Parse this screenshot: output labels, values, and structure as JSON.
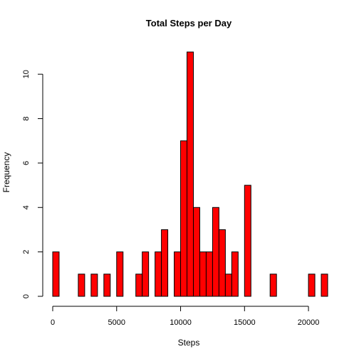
{
  "chart_data": {
    "type": "bar",
    "title": "Total Steps per Day",
    "xlabel": "Steps",
    "ylabel": "Frequency",
    "bar_color": "#ff0000",
    "bin_width": 500,
    "bins": [
      {
        "x0": 0,
        "x1": 500,
        "count": 2
      },
      {
        "x0": 2000,
        "x1": 2500,
        "count": 1
      },
      {
        "x0": 3000,
        "x1": 3500,
        "count": 1
      },
      {
        "x0": 4000,
        "x1": 4500,
        "count": 1
      },
      {
        "x0": 5000,
        "x1": 5500,
        "count": 2
      },
      {
        "x0": 6500,
        "x1": 7000,
        "count": 1
      },
      {
        "x0": 7000,
        "x1": 7500,
        "count": 2
      },
      {
        "x0": 8000,
        "x1": 8500,
        "count": 2
      },
      {
        "x0": 8500,
        "x1": 9000,
        "count": 3
      },
      {
        "x0": 9500,
        "x1": 10000,
        "count": 2
      },
      {
        "x0": 10000,
        "x1": 10500,
        "count": 7
      },
      {
        "x0": 10500,
        "x1": 11000,
        "count": 11
      },
      {
        "x0": 11000,
        "x1": 11500,
        "count": 4
      },
      {
        "x0": 11500,
        "x1": 12000,
        "count": 2
      },
      {
        "x0": 12000,
        "x1": 12500,
        "count": 2
      },
      {
        "x0": 12500,
        "x1": 13000,
        "count": 4
      },
      {
        "x0": 13000,
        "x1": 13500,
        "count": 3
      },
      {
        "x0": 13500,
        "x1": 14000,
        "count": 1
      },
      {
        "x0": 14000,
        "x1": 14500,
        "count": 2
      },
      {
        "x0": 15000,
        "x1": 15500,
        "count": 5
      },
      {
        "x0": 17000,
        "x1": 17500,
        "count": 1
      },
      {
        "x0": 20000,
        "x1": 20500,
        "count": 1
      },
      {
        "x0": 21000,
        "x1": 21500,
        "count": 1
      }
    ],
    "xlim": [
      0,
      21500
    ],
    "ylim": [
      0,
      11
    ],
    "x_ticks": [
      0,
      5000,
      10000,
      15000,
      20000
    ],
    "x_tick_labels": [
      "0",
      "5000",
      "10000",
      "15000",
      "20000"
    ],
    "y_ticks": [
      0,
      2,
      4,
      6,
      8,
      10
    ],
    "y_tick_labels": [
      "0",
      "2",
      "4",
      "6",
      "8",
      "10"
    ],
    "grid": false,
    "legend": "none"
  }
}
